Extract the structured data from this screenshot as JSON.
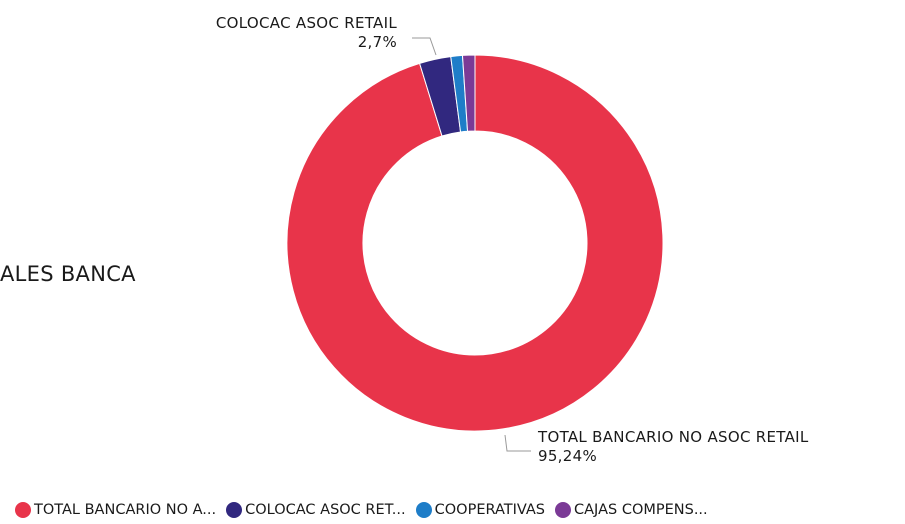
{
  "left_text": "ALES BANCA",
  "chart_data": {
    "type": "pie",
    "donut": true,
    "title": "",
    "slices": [
      {
        "name": "TOTAL BANCARIO NO ASOC RETAIL",
        "value": 95.24,
        "label": "95,24%",
        "color": "#E8344A"
      },
      {
        "name": "COLOCAC ASOC RETAIL",
        "value": 2.7,
        "label": "2,7%",
        "color": "#31287F"
      },
      {
        "name": "COOPERATIVAS",
        "value": 1.0,
        "label": "",
        "color": "#1E7DC8"
      },
      {
        "name": "CAJAS COMPENSACION",
        "value": 1.06,
        "label": "",
        "color": "#7B3A96"
      }
    ],
    "legend": {
      "position": "bottom",
      "items": [
        "TOTAL BANCARIO NO A...",
        "COLOCAC ASOC RET...",
        "COOPERATIVAS",
        "CAJAS COMPENS..."
      ]
    }
  },
  "callouts": {
    "top": {
      "name": "COLOCAC ASOC RETAIL",
      "pct": "2,7%"
    },
    "bottom": {
      "name": "TOTAL BANCARIO NO ASOC RETAIL",
      "pct": "95,24%"
    }
  }
}
